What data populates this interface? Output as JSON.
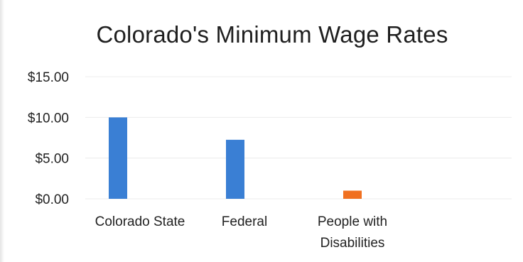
{
  "chart_data": {
    "type": "bar",
    "title": "Colorado's Minimum Wage Rates",
    "xlabel": "",
    "ylabel": "",
    "categories": [
      "Colorado State",
      "Federal",
      "People with Disabilities"
    ],
    "category_lines": [
      [
        "Colorado State"
      ],
      [
        "Federal"
      ],
      [
        "People with",
        "Disabilities"
      ]
    ],
    "values": [
      10.0,
      7.25,
      1.0
    ],
    "bar_colors": [
      "#3a7fd4",
      "#3a7fd4",
      "#f07020"
    ],
    "ylim": [
      0,
      15
    ],
    "yticks": [
      0,
      5,
      10,
      15
    ],
    "ytick_labels": [
      "$0.00",
      "$5.00",
      "$10.00",
      "$15.00"
    ],
    "grid": true,
    "legend": "none"
  },
  "colors": {
    "bar_primary": "#3a7fd4",
    "bar_highlight": "#f07020",
    "gridline": "#ececec",
    "text": "#222222"
  }
}
